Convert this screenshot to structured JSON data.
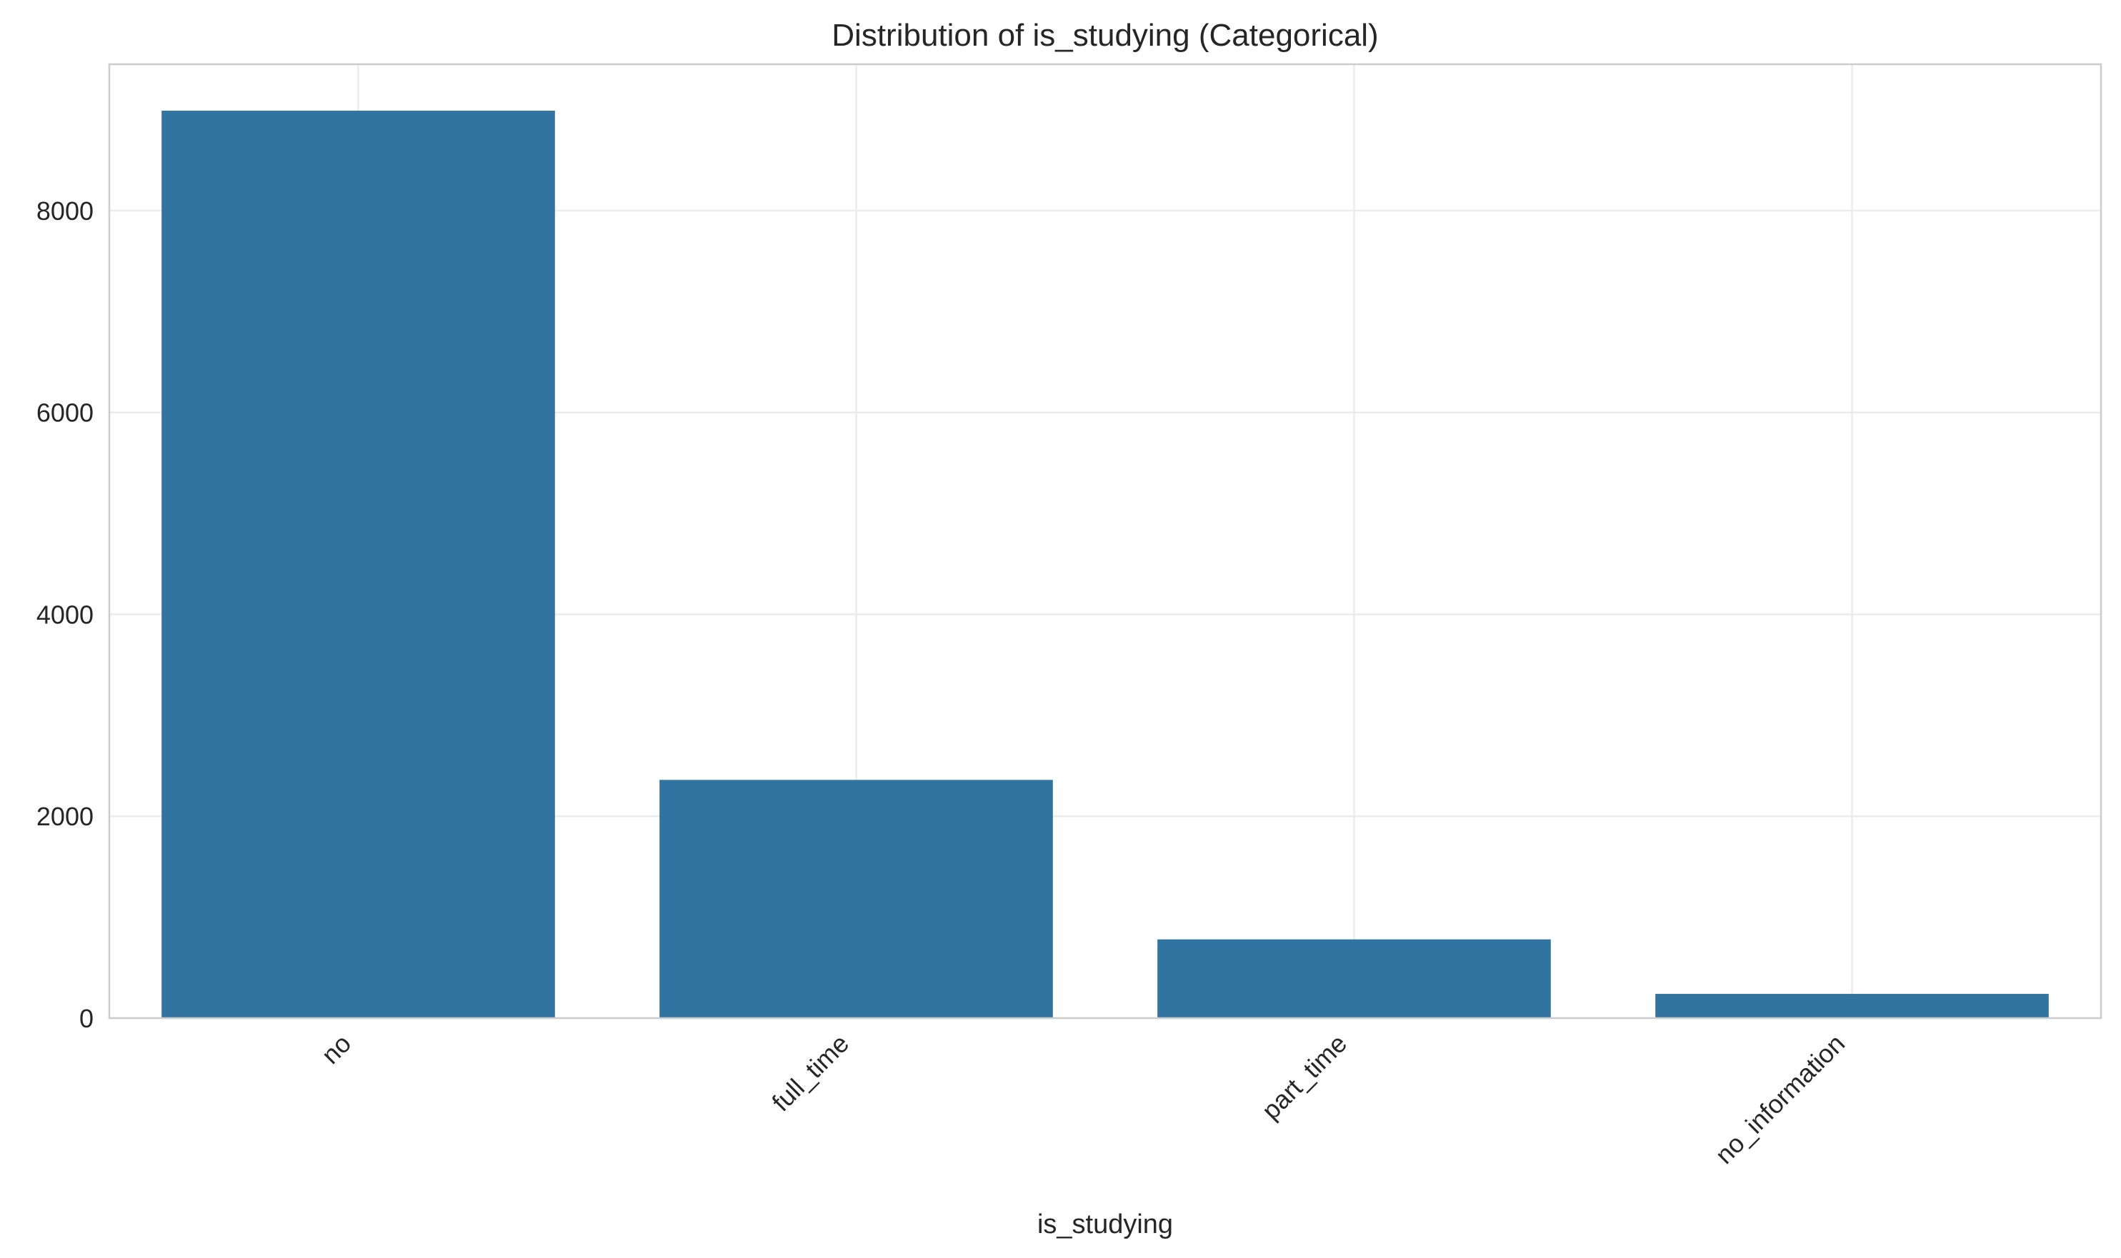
{
  "chart_data": {
    "type": "bar",
    "title": "Distribution of is_studying (Categorical)",
    "xlabel": "is_studying",
    "ylabel": "",
    "categories": [
      "no",
      "full_time",
      "part_time",
      "no_information"
    ],
    "values": [
      8990,
      2360,
      780,
      240
    ],
    "ylim": [
      0,
      9450
    ],
    "yticks": [
      0,
      2000,
      4000,
      6000,
      8000
    ],
    "grid": true,
    "legend": "none",
    "bar_color": "#3274a1",
    "grid_color": "#ebebeb",
    "frame_color": "#cccccc",
    "text_color": "#262626"
  }
}
